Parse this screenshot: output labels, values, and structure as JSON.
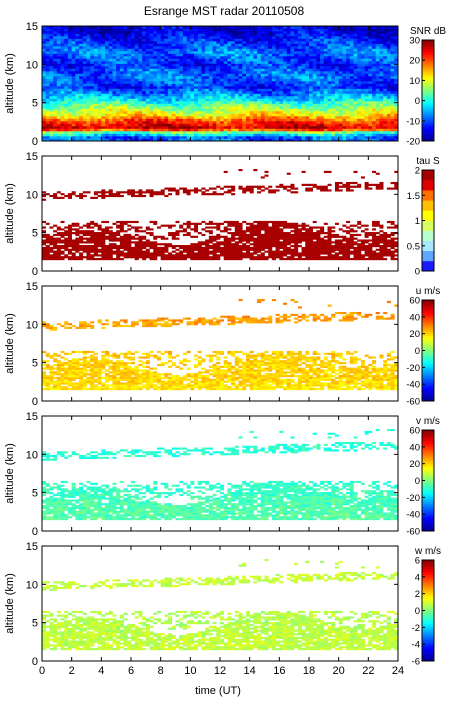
{
  "figure": {
    "title": "Esrange MST radar 20110508",
    "xlabel": "time (UT)"
  },
  "chart_data": [
    {
      "type": "heatmap",
      "quantity": "SNR",
      "ylabel": "altitude (km)",
      "colorbar_label": "SNR dB",
      "colorbar_range": [
        -20,
        30
      ],
      "colorbar_ticks": [
        -20,
        -10,
        0,
        10,
        20,
        30
      ],
      "xlim": [
        0,
        24
      ],
      "ylim": [
        0,
        15
      ],
      "xticks": [
        0,
        2,
        4,
        6,
        8,
        10,
        12,
        14,
        16,
        18,
        20,
        22,
        24
      ],
      "yticks": [
        0,
        5,
        10,
        15
      ],
      "profile": {
        "altitude_km": [
          0.5,
          1.2,
          1.6,
          2.5,
          3.5,
          4.5,
          5.5,
          7,
          8.5,
          10,
          11.5,
          13,
          14.5
        ],
        "value": [
          -9,
          5,
          27,
          22,
          12,
          5,
          -3,
          -12,
          -8,
          -12,
          -8,
          -12,
          -16
        ]
      }
    },
    {
      "type": "heatmap",
      "quantity": "tau",
      "ylabel": "altitude (km)",
      "colorbar_label": "tau S",
      "colorbar_range": [
        0,
        2
      ],
      "colorbar_ticks": [
        0,
        0.5,
        1,
        1.5,
        2
      ],
      "xlim": [
        0,
        24
      ],
      "ylim": [
        0,
        15
      ],
      "xticks": [
        0,
        2,
        4,
        6,
        8,
        10,
        12,
        14,
        16,
        18,
        20,
        22,
        24
      ],
      "yticks": [
        0,
        5,
        10,
        15
      ],
      "profile": {
        "altitude_km": [
          1.5,
          3,
          5,
          9.5,
          10.5,
          11.5
        ],
        "value": [
          1.9,
          1.9,
          1.9,
          1.9,
          1.9,
          1.9
        ]
      }
    },
    {
      "type": "heatmap",
      "quantity": "u",
      "ylabel": "altitude (km)",
      "colorbar_label": "u m/s",
      "colorbar_range": [
        -60,
        60
      ],
      "colorbar_ticks": [
        -60,
        -40,
        -20,
        0,
        20,
        40,
        60
      ],
      "xlim": [
        0,
        24
      ],
      "ylim": [
        0,
        15
      ],
      "xticks": [
        0,
        2,
        4,
        6,
        8,
        10,
        12,
        14,
        16,
        18,
        20,
        22,
        24
      ],
      "yticks": [
        0,
        5,
        10,
        15
      ],
      "profile": {
        "altitude_km": [
          1.5,
          3,
          5,
          9.5,
          10.5,
          11.5
        ],
        "value": [
          18,
          20,
          20,
          24,
          26,
          28
        ]
      }
    },
    {
      "type": "heatmap",
      "quantity": "v",
      "ylabel": "altitude (km)",
      "colorbar_label": "v m/s",
      "colorbar_range": [
        -60,
        60
      ],
      "colorbar_ticks": [
        -60,
        -40,
        -20,
        0,
        20,
        40,
        60
      ],
      "xlim": [
        0,
        24
      ],
      "ylim": [
        0,
        15
      ],
      "xticks": [
        0,
        2,
        4,
        6,
        8,
        10,
        12,
        14,
        16,
        18,
        20,
        22,
        24
      ],
      "yticks": [
        0,
        5,
        10,
        15
      ],
      "profile": {
        "altitude_km": [
          1.5,
          3,
          5,
          9.5,
          10.5,
          11.5
        ],
        "value": [
          -5,
          -5,
          -8,
          -10,
          -10,
          -10
        ]
      }
    },
    {
      "type": "heatmap",
      "quantity": "w",
      "ylabel": "altitude (km)",
      "colorbar_label": "w m/s",
      "colorbar_range": [
        -6,
        6
      ],
      "colorbar_ticks": [
        -6,
        -4,
        -2,
        0,
        2,
        4,
        6
      ],
      "xlim": [
        0,
        24
      ],
      "ylim": [
        0,
        15
      ],
      "xticks": [
        0,
        2,
        4,
        6,
        8,
        10,
        12,
        14,
        16,
        18,
        20,
        22,
        24
      ],
      "yticks": [
        0,
        5,
        10,
        15
      ],
      "profile": {
        "altitude_km": [
          1.5,
          3,
          5,
          9.5,
          10.5,
          11.5
        ],
        "value": [
          0.8,
          0.8,
          0.6,
          0.8,
          0.8,
          0.8
        ]
      }
    }
  ]
}
